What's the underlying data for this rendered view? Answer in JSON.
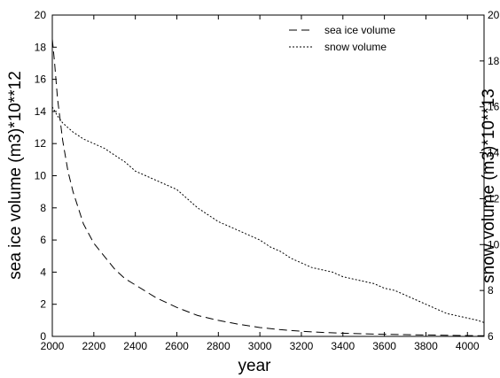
{
  "chart_data": {
    "type": "line",
    "xlabel": "year",
    "ylabel_left": "sea ice volume (m3)*10**12",
    "ylabel_right": "snow volume (m3)*10**13",
    "xlim": [
      2000,
      4080
    ],
    "ylim_left": [
      0,
      20
    ],
    "ylim_right": [
      6,
      20
    ],
    "x_ticks": [
      2000,
      2200,
      2400,
      2600,
      2800,
      3000,
      3200,
      3400,
      3600,
      3800,
      4000
    ],
    "y_ticks_left": [
      0,
      2,
      4,
      6,
      8,
      10,
      12,
      14,
      16,
      18,
      20
    ],
    "y_ticks_right": [
      6,
      8,
      10,
      12,
      14,
      16,
      18,
      20
    ],
    "grid": false,
    "legend_position": "top-right",
    "series": [
      {
        "name": "sea ice volume",
        "axis": "left",
        "style": "dashed",
        "color": "#000000",
        "x": [
          2000,
          2010,
          2025,
          2050,
          2075,
          2100,
          2150,
          2200,
          2250,
          2300,
          2350,
          2400,
          2500,
          2600,
          2700,
          2800,
          2900,
          3000,
          3100,
          3200,
          3300,
          3400,
          3500,
          3600,
          3700,
          3800,
          3900,
          4000,
          4080
        ],
        "y": [
          18.5,
          17.2,
          14.8,
          12.2,
          10.3,
          9.0,
          7.0,
          5.8,
          5.0,
          4.2,
          3.6,
          3.2,
          2.4,
          1.8,
          1.3,
          1.0,
          0.75,
          0.55,
          0.42,
          0.32,
          0.25,
          0.2,
          0.16,
          0.13,
          0.11,
          0.09,
          0.07,
          0.05,
          0.04
        ]
      },
      {
        "name": "snow volume",
        "axis": "right",
        "style": "dotted",
        "color": "#000000",
        "x": [
          2000,
          2025,
          2050,
          2100,
          2150,
          2200,
          2250,
          2300,
          2350,
          2400,
          2450,
          2500,
          2550,
          2600,
          2650,
          2700,
          2750,
          2800,
          2850,
          2900,
          2950,
          3000,
          3050,
          3100,
          3150,
          3200,
          3250,
          3300,
          3350,
          3400,
          3450,
          3500,
          3550,
          3600,
          3650,
          3700,
          3750,
          3800,
          3850,
          3900,
          3950,
          4000,
          4050,
          4080
        ],
        "y": [
          16.0,
          15.6,
          15.3,
          14.9,
          14.6,
          14.4,
          14.2,
          13.9,
          13.6,
          13.2,
          13.0,
          12.8,
          12.6,
          12.4,
          12.0,
          11.6,
          11.3,
          11.0,
          10.8,
          10.6,
          10.4,
          10.2,
          9.9,
          9.7,
          9.4,
          9.2,
          9.0,
          8.9,
          8.8,
          8.6,
          8.5,
          8.4,
          8.3,
          8.1,
          8.0,
          7.8,
          7.6,
          7.4,
          7.2,
          7.0,
          6.9,
          6.8,
          6.7,
          6.6
        ]
      }
    ]
  }
}
